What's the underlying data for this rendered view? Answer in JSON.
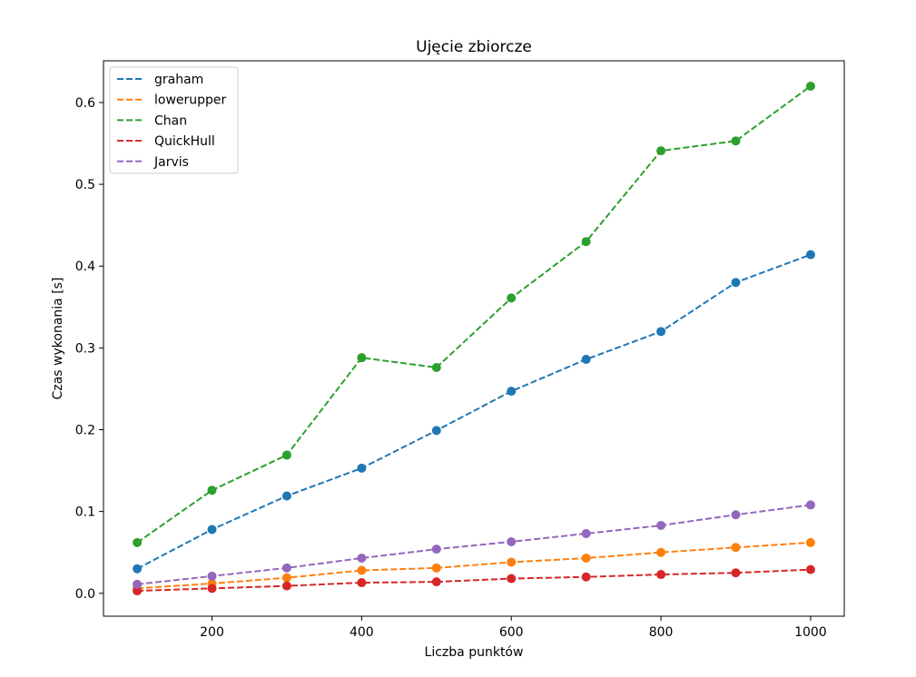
{
  "chart_data": {
    "type": "line",
    "title": "Ujęcie zbiorcze",
    "xlabel": "Liczba punktów",
    "ylabel": "Czas wykonania [s]",
    "xlim": [
      55,
      1045
    ],
    "ylim": [
      -0.028,
      0.651
    ],
    "x": [
      100,
      200,
      300,
      400,
      500,
      600,
      700,
      800,
      900,
      1000
    ],
    "xticks": [
      200,
      400,
      600,
      800,
      1000
    ],
    "xtick_labels": [
      "200",
      "400",
      "600",
      "800",
      "1000"
    ],
    "yticks": [
      0.0,
      0.1,
      0.2,
      0.3,
      0.4,
      0.5,
      0.6
    ],
    "ytick_labels": [
      "0.0",
      "0.1",
      "0.2",
      "0.3",
      "0.4",
      "0.5",
      "0.6"
    ],
    "grid": false,
    "legend_position": "top-left",
    "line_style": "dashed",
    "series": [
      {
        "name": "graham",
        "color": "#1f77b4",
        "values": [
          0.03,
          0.078,
          0.119,
          0.153,
          0.199,
          0.247,
          0.286,
          0.32,
          0.38,
          0.414
        ]
      },
      {
        "name": "lowerupper",
        "color": "#ff7f0e",
        "values": [
          0.006,
          0.012,
          0.019,
          0.028,
          0.031,
          0.038,
          0.043,
          0.05,
          0.056,
          0.062
        ]
      },
      {
        "name": "Chan",
        "color": "#2ca02c",
        "values": [
          0.062,
          0.126,
          0.169,
          0.288,
          0.276,
          0.361,
          0.43,
          0.541,
          0.553,
          0.62
        ]
      },
      {
        "name": "QuickHull",
        "color": "#d62728",
        "values": [
          0.003,
          0.006,
          0.009,
          0.013,
          0.014,
          0.018,
          0.02,
          0.023,
          0.025,
          0.029
        ]
      },
      {
        "name": "Jarvis",
        "color": "#9467bd",
        "values": [
          0.011,
          0.021,
          0.031,
          0.043,
          0.054,
          0.063,
          0.073,
          0.083,
          0.096,
          0.108
        ]
      }
    ]
  }
}
